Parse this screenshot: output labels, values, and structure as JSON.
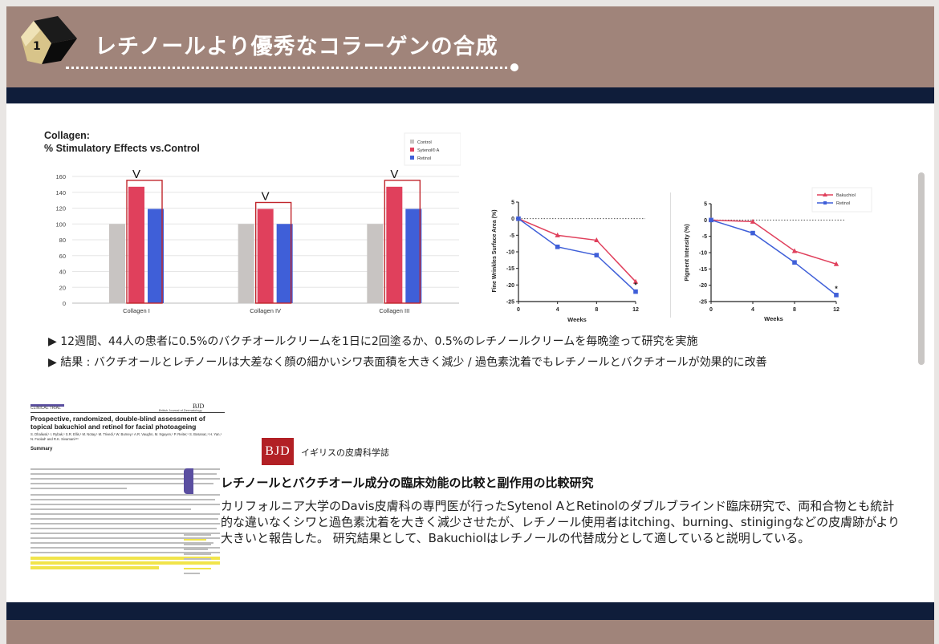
{
  "header": {
    "badge_number": "1",
    "title": "レチノールより優秀なコラーゲンの合成"
  },
  "colors": {
    "header_bg": "#a0847a",
    "navy": "#0f1d3a",
    "control": "#c8c4c2",
    "sytenol": "#e0405c",
    "retinol": "#3f5fd8",
    "highlight_box": "#c0262c"
  },
  "bar_chart": {
    "title_line1": "Collagen:",
    "title_line2": "% Stimulatory Effects vs.Control",
    "legend": [
      "Control",
      "Sytenol® A",
      "Retinol"
    ],
    "chart_data": {
      "type": "bar",
      "categories": [
        "Collagen I",
        "Collagen IV",
        "Collagen III"
      ],
      "series": [
        {
          "name": "Control",
          "values": [
            100,
            100,
            100
          ]
        },
        {
          "name": "Sytenol® A",
          "values": [
            147,
            119,
            147
          ]
        },
        {
          "name": "Retinol",
          "values": [
            119,
            100,
            119
          ]
        }
      ],
      "ylim": [
        0,
        160
      ],
      "yticks": [
        0,
        20,
        40,
        60,
        80,
        100,
        120,
        140,
        160
      ],
      "annotation": "V",
      "grid": true
    }
  },
  "wrinkle_chart": {
    "chart_data": {
      "type": "line",
      "ylabel": "Fine Wrinkles Surface Area (%)",
      "xlabel": "Weeks",
      "x": [
        0,
        4,
        8,
        12
      ],
      "ylim": [
        -25,
        5
      ],
      "yticks": [
        5,
        0,
        -5,
        -10,
        -15,
        -20,
        -25
      ],
      "series": [
        {
          "name": "Bakuchiol",
          "values": [
            0,
            -5,
            -6.5,
            -19
          ]
        },
        {
          "name": "Retinol",
          "values": [
            0,
            -8.5,
            -11,
            -22
          ]
        }
      ],
      "annotation": "*"
    }
  },
  "pigment_chart": {
    "chart_data": {
      "type": "line",
      "ylabel": "Pigment Intensity (%)",
      "xlabel": "Weeks",
      "x": [
        0,
        4,
        8,
        12
      ],
      "ylim": [
        -25,
        5
      ],
      "yticks": [
        5,
        0,
        -5,
        -10,
        -15,
        -20,
        -25
      ],
      "series": [
        {
          "name": "Bakuchiol",
          "values": [
            0,
            -0.5,
            -9.5,
            -13.5
          ]
        },
        {
          "name": "Retinol",
          "values": [
            0,
            -4,
            -13,
            -23
          ]
        }
      ],
      "legend": [
        "Bakuchiol",
        "Retinol"
      ],
      "annotation": "*"
    }
  },
  "bullets": [
    "▶ 12週間、44人の患者に0.5%のバクチオールクリームを1日に2回塗るか、0.5%のレチノールクリームを毎晩塗って研究を実施",
    "▶ 結果 : バクチオールとレチノールは大差なく顔の細かいシワ表面積を大きく減少 / 過色素沈着でもレチノールとバクチオールが効果的に改善"
  ],
  "paper": {
    "section": "CLINICAL TRIAL",
    "journal_short": "BJD",
    "journal_name": "British Journal of Dermatology",
    "title": "Prospective, randomized, double-blind assessment of topical bakuchiol and retinol for facial photoageing",
    "authors": "S. Dhaliwal,¹ I. Rybak,¹ S.R. Ellis,¹ M. Notay,¹ M. Trivedi,¹ W. Burney,¹ A.R. Vaughn, M. Nguyen,¹ P. Reiter,¹ S. Bosanac,¹ H. Yan,¹ N. Foolad¹ and R.K. Sivamani¹²³",
    "summary_heading": "Summary"
  },
  "study": {
    "journal_logo": "BJD",
    "journal_label": "イギリスの皮膚科学誌",
    "title": "レチノールとバクチオール成分の臨床効能の比較と副作用の比較研究",
    "body": "カリフォルニア大学のDavis皮膚科の専門医が行ったSytenol AとRetinolのダブルブラインド臨床研究で、両和合物とも統計的な違いなくシワと過色素沈着を大きく減少させたが、レチノール使用者はitching、burning、stinigingなどの皮膚跡がより大きいと報告した。 研究結果として、Bakuchiolはレチノールの代替成分として適していると説明している。"
  }
}
